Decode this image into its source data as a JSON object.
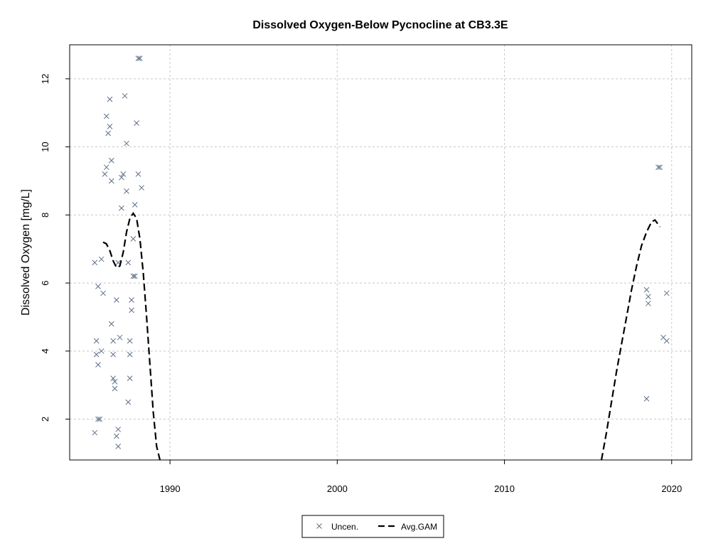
{
  "chart_data": {
    "type": "scatter",
    "title": "Dissolved Oxygen-Below Pycnocline at CB3.3E",
    "xlabel": "",
    "ylabel": "Dissolved Oxygen [mg/L]",
    "xlim": [
      1984,
      2021.2
    ],
    "ylim": [
      0.8,
      13.0
    ],
    "x_ticks": [
      1990,
      2000,
      2010,
      2020
    ],
    "y_ticks": [
      2,
      4,
      6,
      8,
      10,
      12
    ],
    "grid": true,
    "legend_position": "bottom",
    "colors": {
      "points": "#5f6f8a",
      "gam": "#000000"
    },
    "series": [
      {
        "name": "Uncen.",
        "marker": "x",
        "points": [
          [
            1985.5,
            6.6
          ],
          [
            1985.5,
            1.6
          ],
          [
            1985.6,
            3.9
          ],
          [
            1985.6,
            4.3
          ],
          [
            1985.7,
            5.9
          ],
          [
            1985.7,
            3.6
          ],
          [
            1985.7,
            2.0
          ],
          [
            1985.8,
            2.0
          ],
          [
            1985.9,
            6.7
          ],
          [
            1985.9,
            4.0
          ],
          [
            1986.0,
            5.7
          ],
          [
            1986.1,
            9.2
          ],
          [
            1986.2,
            9.4
          ],
          [
            1986.2,
            10.9
          ],
          [
            1986.3,
            10.4
          ],
          [
            1986.4,
            11.4
          ],
          [
            1986.4,
            10.6
          ],
          [
            1986.5,
            9.6
          ],
          [
            1986.5,
            9.0
          ],
          [
            1986.5,
            4.8
          ],
          [
            1986.6,
            4.3
          ],
          [
            1986.6,
            3.9
          ],
          [
            1986.6,
            3.2
          ],
          [
            1986.7,
            2.9
          ],
          [
            1986.7,
            3.1
          ],
          [
            1986.8,
            5.5
          ],
          [
            1986.8,
            1.5
          ],
          [
            1986.9,
            6.6
          ],
          [
            1986.9,
            1.2
          ],
          [
            1986.9,
            1.7
          ],
          [
            1987.0,
            4.4
          ],
          [
            1987.1,
            8.2
          ],
          [
            1987.1,
            9.1
          ],
          [
            1987.2,
            9.2
          ],
          [
            1987.3,
            11.5
          ],
          [
            1987.4,
            10.1
          ],
          [
            1987.4,
            8.7
          ],
          [
            1987.5,
            6.6
          ],
          [
            1987.5,
            2.5
          ],
          [
            1987.6,
            3.9
          ],
          [
            1987.6,
            3.2
          ],
          [
            1987.6,
            4.3
          ],
          [
            1987.7,
            5.2
          ],
          [
            1987.7,
            5.5
          ],
          [
            1987.8,
            6.2
          ],
          [
            1987.8,
            7.3
          ],
          [
            1987.9,
            6.2
          ],
          [
            1987.9,
            8.3
          ],
          [
            1988.0,
            10.7
          ],
          [
            1988.1,
            9.2
          ],
          [
            1988.1,
            12.6
          ],
          [
            1988.2,
            12.6
          ],
          [
            1988.3,
            8.8
          ],
          [
            2018.5,
            2.6
          ],
          [
            2018.5,
            5.8
          ],
          [
            2018.6,
            5.6
          ],
          [
            2018.6,
            5.4
          ],
          [
            2019.2,
            9.4
          ],
          [
            2019.3,
            9.4
          ],
          [
            2019.5,
            4.4
          ],
          [
            2019.7,
            5.7
          ],
          [
            2019.7,
            4.3
          ]
        ]
      },
      {
        "name": "Avg.GAM",
        "line": "dashed",
        "segments": [
          [
            [
              1986.0,
              7.2
            ],
            [
              1986.2,
              7.15
            ],
            [
              1986.4,
              6.95
            ],
            [
              1986.6,
              6.65
            ],
            [
              1986.8,
              6.45
            ],
            [
              1987.0,
              6.5
            ],
            [
              1987.2,
              6.9
            ],
            [
              1987.4,
              7.5
            ],
            [
              1987.6,
              7.9
            ],
            [
              1987.8,
              8.05
            ],
            [
              1988.0,
              7.9
            ],
            [
              1988.2,
              7.3
            ],
            [
              1988.4,
              6.3
            ],
            [
              1988.6,
              5.0
            ],
            [
              1988.8,
              3.6
            ],
            [
              1989.0,
              2.2
            ],
            [
              1989.2,
              1.2
            ],
            [
              1989.4,
              0.8
            ]
          ],
          [
            [
              2015.8,
              0.8
            ],
            [
              2016.1,
              1.6
            ],
            [
              2016.4,
              2.5
            ],
            [
              2016.7,
              3.4
            ],
            [
              2017.0,
              4.2
            ],
            [
              2017.3,
              5.0
            ],
            [
              2017.6,
              5.8
            ],
            [
              2017.9,
              6.5
            ],
            [
              2018.2,
              7.1
            ],
            [
              2018.5,
              7.5
            ],
            [
              2018.8,
              7.8
            ],
            [
              2019.0,
              7.85
            ],
            [
              2019.3,
              7.65
            ]
          ]
        ]
      }
    ]
  }
}
